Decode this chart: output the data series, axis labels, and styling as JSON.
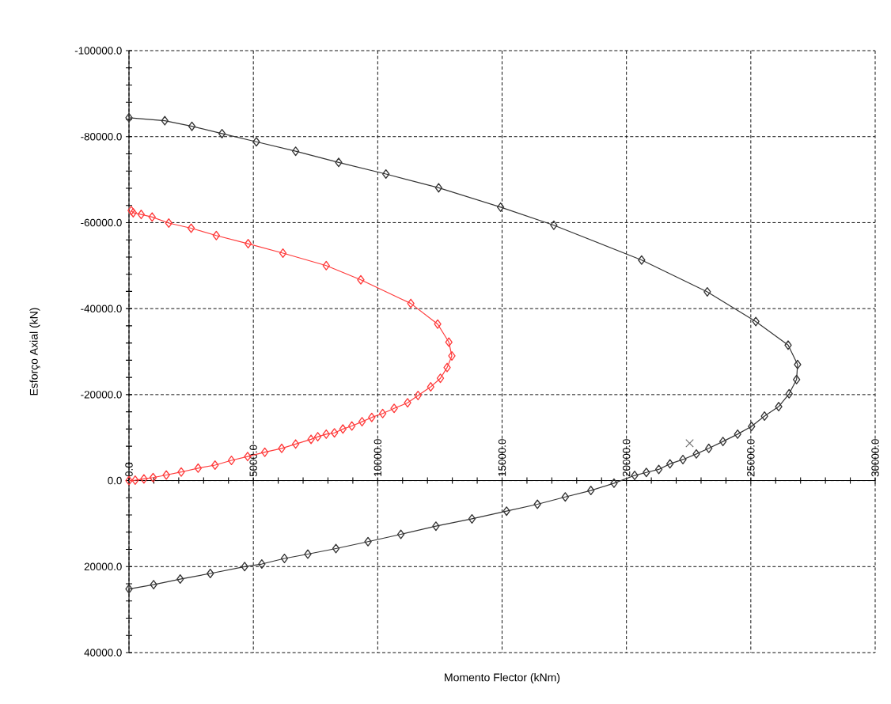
{
  "chart_data": {
    "type": "line",
    "xlabel": "Momento Flector (kNm)",
    "ylabel": "Esforço Axial (kN)",
    "xlim": [
      0,
      30000
    ],
    "ylim": [
      40000,
      -100000
    ],
    "xticks": [
      {
        "value": 0,
        "label": "0.0"
      },
      {
        "value": 5000,
        "label": "5000.0"
      },
      {
        "value": 10000,
        "label": "10000.0"
      },
      {
        "value": 15000,
        "label": "15000.0"
      },
      {
        "value": 20000,
        "label": "20000.0"
      },
      {
        "value": 25000,
        "label": "25000.0"
      },
      {
        "value": 30000,
        "label": "30000.0"
      }
    ],
    "yticks": [
      {
        "value": -100000,
        "label": "-100000.0"
      },
      {
        "value": -80000,
        "label": "-80000.0"
      },
      {
        "value": -60000,
        "label": "-60000.0"
      },
      {
        "value": -40000,
        "label": "-40000.0"
      },
      {
        "value": -20000,
        "label": "-20000.0"
      },
      {
        "value": 0,
        "label": "0.0"
      },
      {
        "value": 20000,
        "label": "20000.0"
      },
      {
        "value": 40000,
        "label": "40000.0"
      }
    ],
    "grid": true,
    "marker": "diamond",
    "line_style": "solid",
    "series": [
      {
        "color": "#333333",
        "x": [
          0,
          1440,
          2530,
          3740,
          5120,
          6700,
          8430,
          10330,
          12450,
          14940,
          17080,
          20610,
          23250,
          25200,
          26500,
          26880,
          26840,
          26540,
          26120,
          25550,
          25030,
          24470,
          23880,
          23310,
          22810,
          22270,
          21750,
          21300,
          20800,
          20330,
          19500,
          18570,
          17540,
          16420,
          15180,
          13790,
          12340,
          10930,
          9610,
          8320,
          7190,
          6250,
          5340,
          4650,
          3270,
          2060,
          990,
          0
        ],
        "values": [
          -84400,
          -83700,
          -82400,
          -80700,
          -78800,
          -76600,
          -74000,
          -71300,
          -68100,
          -63600,
          -59400,
          -51300,
          -43900,
          -37000,
          -31500,
          -27000,
          -23500,
          -20200,
          -17200,
          -15000,
          -12600,
          -10800,
          -9100,
          -7500,
          -6200,
          -4900,
          -3900,
          -2600,
          -1900,
          -1200,
          600,
          2300,
          3800,
          5500,
          7100,
          8900,
          10600,
          12500,
          14200,
          15800,
          17100,
          18100,
          19400,
          20000,
          21600,
          22900,
          24200,
          25200
        ]
      },
      {
        "color": "#ff3b3b",
        "x": [
          90,
          170,
          490,
          930,
          1600,
          2500,
          3510,
          4790,
          6190,
          7930,
          9320,
          11330,
          12410,
          12860,
          12980,
          12790,
          12520,
          12130,
          11620,
          11200,
          10660,
          10200,
          9760,
          9370,
          8960,
          8600,
          8260,
          7930,
          7590,
          7320,
          6700,
          6140,
          5460,
          4770,
          4120,
          3460,
          2780,
          2100,
          1500,
          970,
          600,
          250,
          0
        ],
        "values": [
          -62800,
          -62300,
          -61900,
          -61300,
          -59900,
          -58700,
          -57000,
          -55100,
          -52900,
          -50000,
          -46700,
          -41200,
          -36400,
          -32200,
          -29000,
          -26300,
          -23800,
          -21800,
          -19800,
          -18100,
          -16800,
          -15600,
          -14700,
          -13700,
          -12700,
          -12000,
          -11100,
          -10800,
          -10200,
          -9600,
          -8500,
          -7500,
          -6600,
          -5600,
          -4700,
          -3600,
          -2900,
          -2000,
          -1300,
          -700,
          -400,
          -100,
          0
        ]
      },
      {
        "color": "#666666",
        "type": "scatter",
        "marker": "cross",
        "x": [
          22540
        ],
        "values": [
          -8700
        ]
      }
    ]
  }
}
